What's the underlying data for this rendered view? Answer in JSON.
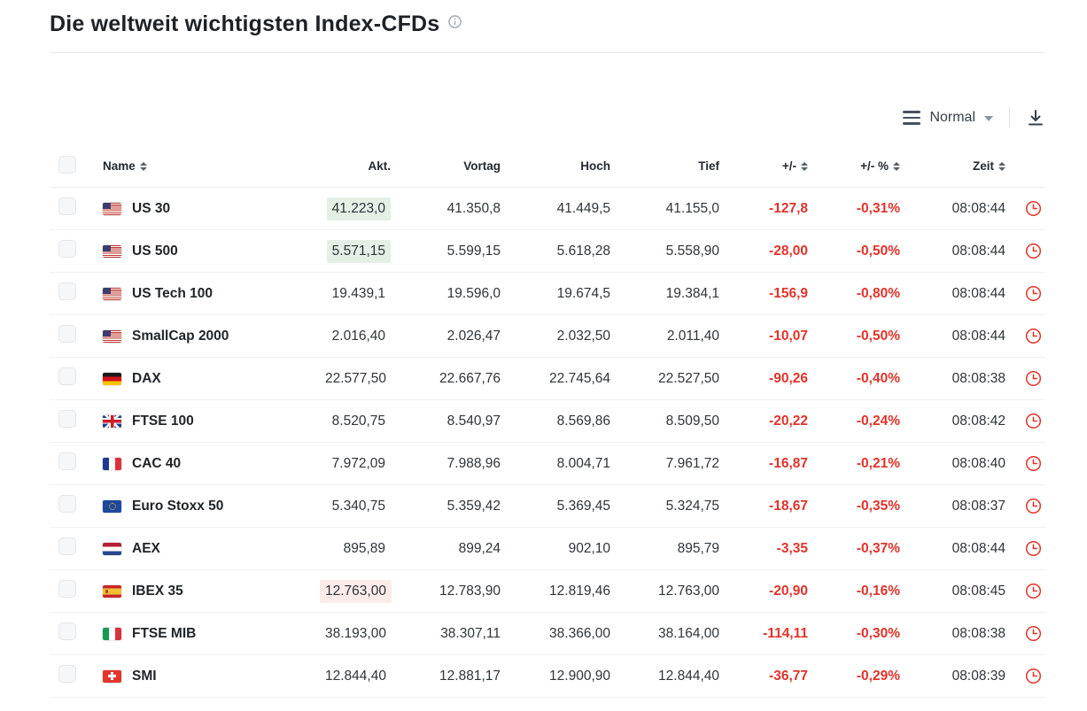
{
  "page": {
    "title": "Die weltweit wichtigsten Index-CFDs"
  },
  "toolbar": {
    "view_label": "Normal"
  },
  "icons": {
    "title_info": "info-icon",
    "view_menu": "hamburger-icon",
    "view_chevron": "chevron-down-icon",
    "download": "download-icon",
    "sort": "sort-arrows-icon",
    "row_clock": "clock-icon"
  },
  "colors": {
    "negative_text": "#e1332b",
    "flash_up_bg": "#e4efe6",
    "flash_down_bg": "#fcebe9",
    "header_text": "#232a30",
    "row_border": "#edf0f2"
  },
  "table": {
    "headers": {
      "name": "Name",
      "last": "Akt.",
      "prev": "Vortag",
      "high": "Hoch",
      "low": "Tief",
      "chg": "+/-",
      "chg_pct": "+/- %",
      "time": "Zeit"
    },
    "rows": [
      {
        "flag": "us",
        "name": "US 30",
        "last": "41.223,0",
        "prev": "41.350,8",
        "high": "41.449,5",
        "low": "41.155,0",
        "chg": "-127,8",
        "chg_pct": "-0,31%",
        "time": "08:08:44",
        "flash": "up"
      },
      {
        "flag": "us",
        "name": "US 500",
        "last": "5.571,15",
        "prev": "5.599,15",
        "high": "5.618,28",
        "low": "5.558,90",
        "chg": "-28,00",
        "chg_pct": "-0,50%",
        "time": "08:08:44",
        "flash": "up"
      },
      {
        "flag": "us",
        "name": "US Tech 100",
        "last": "19.439,1",
        "prev": "19.596,0",
        "high": "19.674,5",
        "low": "19.384,1",
        "chg": "-156,9",
        "chg_pct": "-0,80%",
        "time": "08:08:44",
        "flash": "none"
      },
      {
        "flag": "us",
        "name": "SmallCap 2000",
        "last": "2.016,40",
        "prev": "2.026,47",
        "high": "2.032,50",
        "low": "2.011,40",
        "chg": "-10,07",
        "chg_pct": "-0,50%",
        "time": "08:08:44",
        "flash": "none"
      },
      {
        "flag": "de",
        "name": "DAX",
        "last": "22.577,50",
        "prev": "22.667,76",
        "high": "22.745,64",
        "low": "22.527,50",
        "chg": "-90,26",
        "chg_pct": "-0,40%",
        "time": "08:08:38",
        "flash": "none"
      },
      {
        "flag": "gb",
        "name": "FTSE 100",
        "last": "8.520,75",
        "prev": "8.540,97",
        "high": "8.569,86",
        "low": "8.509,50",
        "chg": "-20,22",
        "chg_pct": "-0,24%",
        "time": "08:08:42",
        "flash": "none"
      },
      {
        "flag": "fr",
        "name": "CAC 40",
        "last": "7.972,09",
        "prev": "7.988,96",
        "high": "8.004,71",
        "low": "7.961,72",
        "chg": "-16,87",
        "chg_pct": "-0,21%",
        "time": "08:08:40",
        "flash": "none"
      },
      {
        "flag": "eu",
        "name": "Euro Stoxx 50",
        "last": "5.340,75",
        "prev": "5.359,42",
        "high": "5.369,45",
        "low": "5.324,75",
        "chg": "-18,67",
        "chg_pct": "-0,35%",
        "time": "08:08:37",
        "flash": "none"
      },
      {
        "flag": "nl",
        "name": "AEX",
        "last": "895,89",
        "prev": "899,24",
        "high": "902,10",
        "low": "895,79",
        "chg": "-3,35",
        "chg_pct": "-0,37%",
        "time": "08:08:44",
        "flash": "none"
      },
      {
        "flag": "es",
        "name": "IBEX 35",
        "last": "12.763,00",
        "prev": "12.783,90",
        "high": "12.819,46",
        "low": "12.763,00",
        "chg": "-20,90",
        "chg_pct": "-0,16%",
        "time": "08:08:45",
        "flash": "down"
      },
      {
        "flag": "it",
        "name": "FTSE MIB",
        "last": "38.193,00",
        "prev": "38.307,11",
        "high": "38.366,00",
        "low": "38.164,00",
        "chg": "-114,11",
        "chg_pct": "-0,30%",
        "time": "08:08:38",
        "flash": "none"
      },
      {
        "flag": "ch",
        "name": "SMI",
        "last": "12.844,40",
        "prev": "12.881,17",
        "high": "12.900,90",
        "low": "12.844,40",
        "chg": "-36,77",
        "chg_pct": "-0,29%",
        "time": "08:08:39",
        "flash": "none"
      }
    ]
  }
}
